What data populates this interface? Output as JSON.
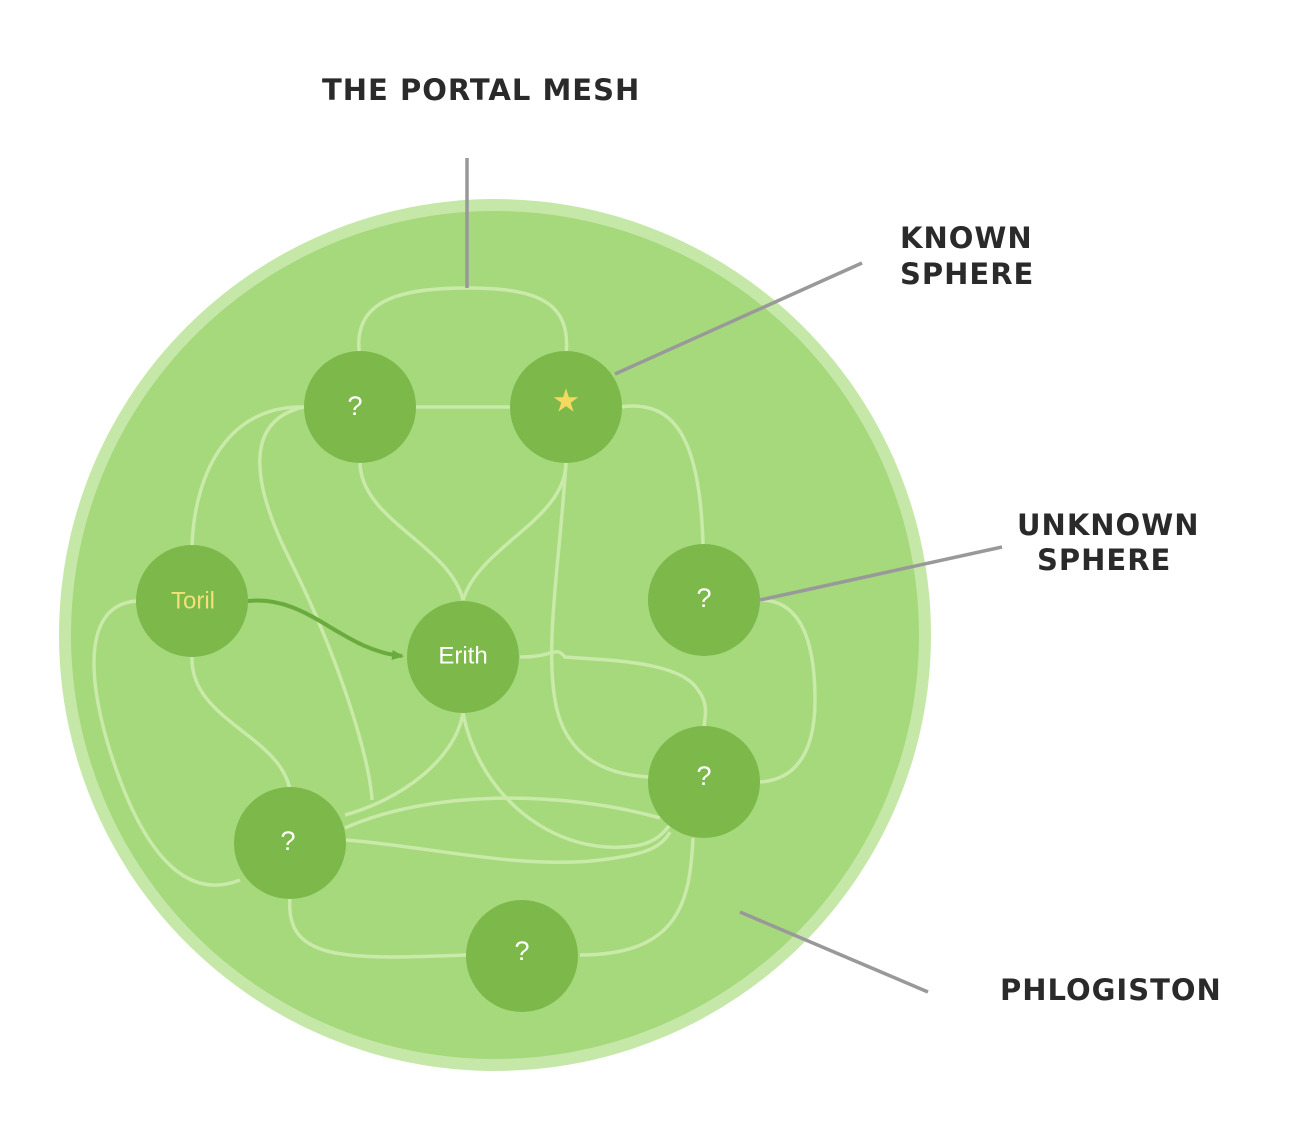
{
  "title": "THE PORTAL MESH",
  "callouts": {
    "known_sphere": [
      "KNOWN",
      "SPHERE"
    ],
    "unknown_sphere": [
      "UNKNOWN",
      "SPHERE"
    ],
    "phlogiston": "PHLOGISTON"
  },
  "nodes": {
    "toril": "Toril",
    "erith": "Erith",
    "unknown_symbol": "?",
    "known_symbol": "★"
  },
  "colors": {
    "phlogiston_outer": "#c5e8a8",
    "phlogiston_inner": "#a5d97c",
    "node_fill": "#7cb84a",
    "mesh_line": "#c9eaa9",
    "arrow": "#6aaa3e",
    "leader_line": "#999999",
    "toril_text": "#f3e07a",
    "star": "#f3d95f",
    "node_text": "#ffffff"
  }
}
